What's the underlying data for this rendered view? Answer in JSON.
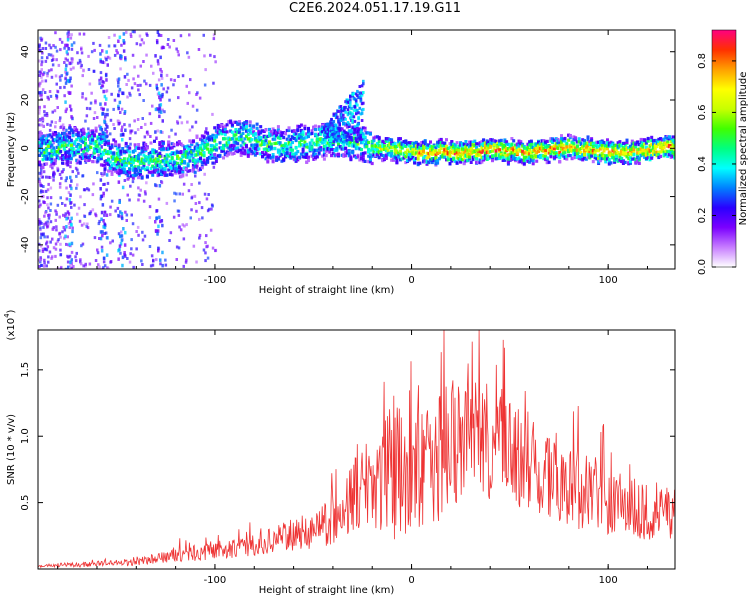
{
  "figure": {
    "title": "C2E6.2024.051.17.19.G11"
  },
  "chart_data": [
    {
      "type": "heatmap",
      "xlabel": "Height of straight line (km)",
      "ylabel": "Frequency (Hz)",
      "xlim": [
        -190,
        134
      ],
      "ylim": [
        -50,
        49
      ],
      "x_ticks": [
        -100,
        0,
        100
      ],
      "y_ticks": [
        -40,
        -20,
        0,
        20,
        40
      ],
      "grid": false,
      "colorbar": {
        "label": "Normalized spectral amplitude",
        "range": [
          0,
          0.92
        ],
        "ticks": [
          0.0,
          0.2,
          0.4,
          0.6,
          0.8
        ],
        "colormap": [
          "#ffffff",
          "#c77dff",
          "#7b00ff",
          "#2a00ff",
          "#0080ff",
          "#00ffff",
          "#00ff80",
          "#40ff00",
          "#c8ff00",
          "#ffff00",
          "#ffa000",
          "#ff3000",
          "#ff0080"
        ]
      },
      "ridge": {
        "description_points_x": [
          -190,
          -170,
          -160,
          -150,
          -140,
          -130,
          -120,
          -110,
          -100,
          -90,
          -80,
          -70,
          -60,
          -50,
          -40,
          -30,
          -25,
          -20,
          0,
          20,
          40,
          60,
          80,
          100,
          120,
          134
        ],
        "center_frequency_hz": [
          0,
          2,
          1,
          -4,
          -5,
          -4,
          -4,
          -2,
          3,
          5,
          4,
          2,
          2,
          3,
          5,
          3,
          2,
          1,
          -1,
          -1,
          0,
          -1,
          1,
          -1,
          0,
          1
        ]
      },
      "upward_branch": {
        "x": [
          -45,
          -40,
          -35,
          -30,
          -25
        ],
        "y": [
          10,
          15,
          20,
          24,
          29
        ]
      }
    },
    {
      "type": "line",
      "xlabel": "Height of straight line (km)",
      "ylabel": "SNR (10 * v/v)",
      "y_multiplier_label": "(x10",
      "y_multiplier_exp": "4",
      "y_multiplier_close": ")",
      "xlim": [
        -190,
        134
      ],
      "ylim": [
        0,
        1.8
      ],
      "x_ticks": [
        -100,
        0,
        100
      ],
      "y_ticks": [
        0.5,
        1.0,
        1.5
      ],
      "y_tick_labels": [
        "0.5",
        "1.0",
        "1.5"
      ],
      "color": "#ee3333",
      "series": [
        {
          "x": [
            -190,
            -180,
            -170,
            -160,
            -150,
            -140,
            -130,
            -120,
            -110,
            -100,
            -90,
            -80,
            -70,
            -60,
            -50,
            -40,
            -35,
            -30,
            -25,
            -20,
            -15,
            -10,
            -5,
            0,
            5,
            10,
            15,
            20,
            25,
            30,
            35,
            40,
            45,
            50,
            55,
            60,
            65,
            70,
            75,
            80,
            85,
            90,
            95,
            100,
            105,
            110,
            115,
            120,
            125,
            130,
            134
          ],
          "values": [
            0.02,
            0.03,
            0.03,
            0.04,
            0.05,
            0.05,
            0.08,
            0.1,
            0.12,
            0.13,
            0.16,
            0.18,
            0.22,
            0.26,
            0.3,
            0.38,
            0.45,
            0.55,
            0.62,
            0.68,
            0.7,
            0.72,
            0.72,
            0.75,
            0.78,
            0.8,
            0.88,
            0.9,
            0.92,
            0.95,
            0.98,
            0.95,
            0.9,
            0.88,
            0.85,
            0.8,
            0.78,
            0.72,
            0.7,
            0.65,
            0.6,
            0.58,
            0.55,
            0.52,
            0.5,
            0.48,
            0.45,
            0.42,
            0.4,
            0.42,
            0.44
          ],
          "amplitude": [
            0.01,
            0.015,
            0.02,
            0.02,
            0.02,
            0.03,
            0.04,
            0.05,
            0.06,
            0.06,
            0.08,
            0.08,
            0.1,
            0.12,
            0.15,
            0.2,
            0.25,
            0.3,
            0.35,
            0.4,
            0.45,
            0.5,
            0.5,
            0.5,
            0.5,
            0.5,
            0.55,
            0.5,
            0.45,
            0.45,
            0.45,
            0.45,
            0.4,
            0.4,
            0.4,
            0.4,
            0.38,
            0.36,
            0.35,
            0.32,
            0.3,
            0.3,
            0.28,
            0.26,
            0.25,
            0.24,
            0.22,
            0.22,
            0.2,
            0.2,
            0.2
          ]
        }
      ]
    }
  ]
}
